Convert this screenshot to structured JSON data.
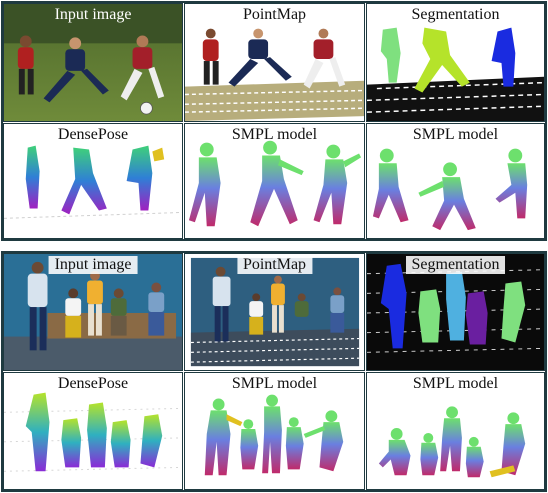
{
  "rows": [
    {
      "cells": [
        {
          "label": "Input image"
        },
        {
          "label": "PointMap"
        },
        {
          "label": "Segmentation"
        }
      ]
    },
    {
      "cells": [
        {
          "label": "DensePose"
        },
        {
          "label": "SMPL model"
        },
        {
          "label": "SMPL model"
        }
      ]
    },
    {
      "cells": [
        {
          "label": "Input image"
        },
        {
          "label": "PointMap"
        },
        {
          "label": "Segmentation"
        }
      ]
    },
    {
      "cells": [
        {
          "label": "DensePose"
        },
        {
          "label": "SMPL model"
        },
        {
          "label": "SMPL model"
        }
      ]
    }
  ]
}
